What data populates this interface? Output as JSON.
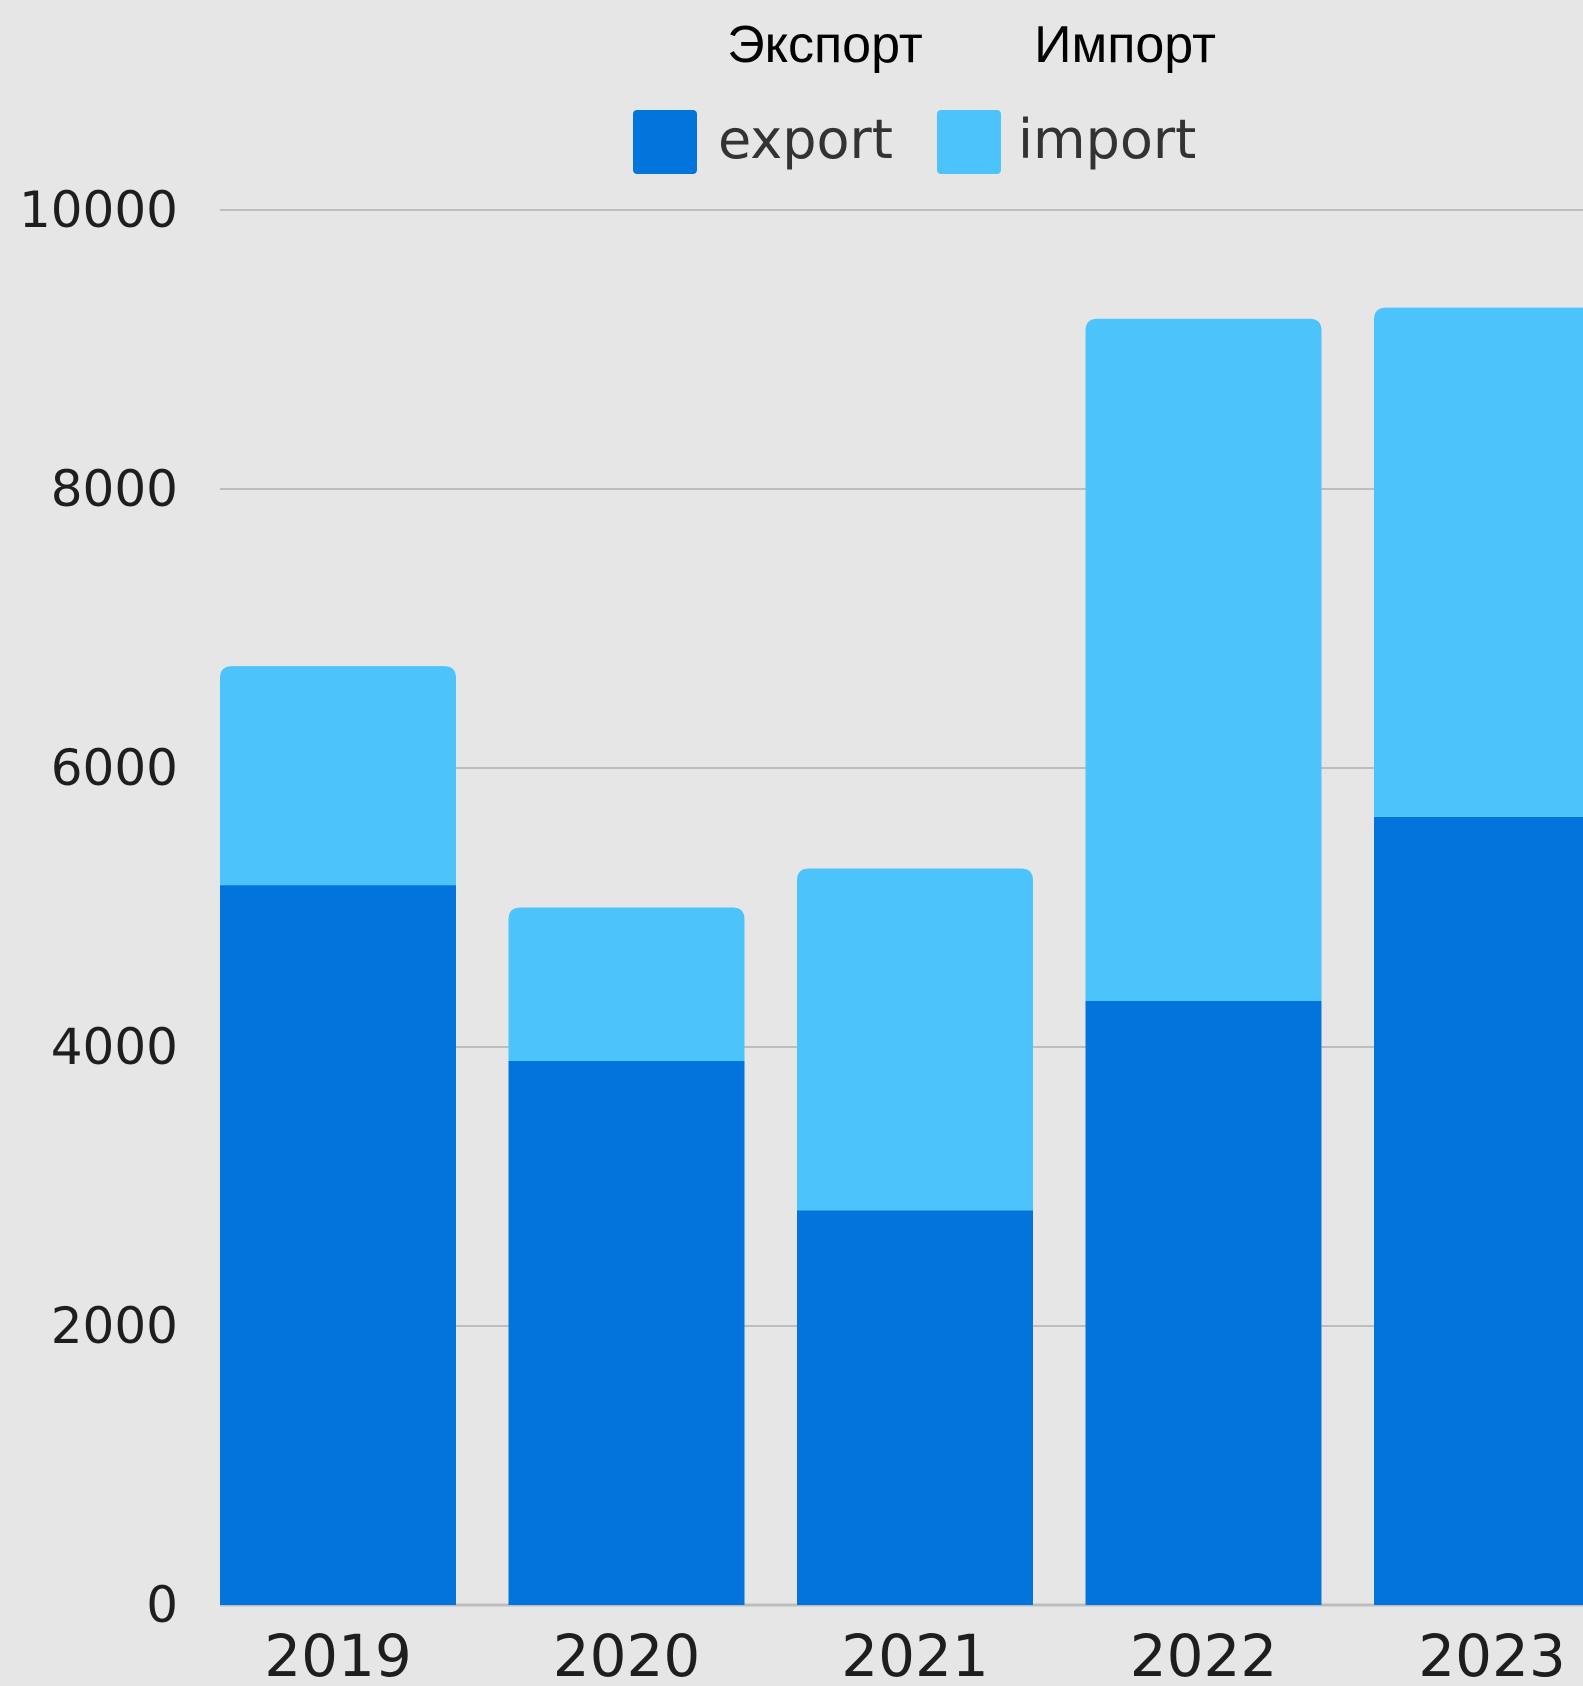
{
  "chart_data": {
    "type": "bar",
    "stacked": true,
    "categories": [
      "2019",
      "2020",
      "2021",
      "2022",
      "2023"
    ],
    "series": [
      {
        "name": "export",
        "values": [
          5160,
          3900,
          2830,
          4330,
          5650
        ]
      },
      {
        "name": "import",
        "values": [
          1570,
          1100,
          2450,
          4890,
          3650
        ]
      }
    ],
    "ylim": [
      0,
      10000
    ],
    "yticks": [
      0,
      2000,
      4000,
      6000,
      8000,
      10000
    ],
    "grid": true,
    "legend": {
      "position": "top-center",
      "entries": [
        "export",
        "import"
      ],
      "annotations": [
        "Экспорт",
        "Импорт"
      ]
    },
    "colors": {
      "export": "#0274dc",
      "import": "#4cc3fb",
      "grid": "#bdbdbd"
    },
    "title": "",
    "xlabel": "",
    "ylabel": ""
  }
}
